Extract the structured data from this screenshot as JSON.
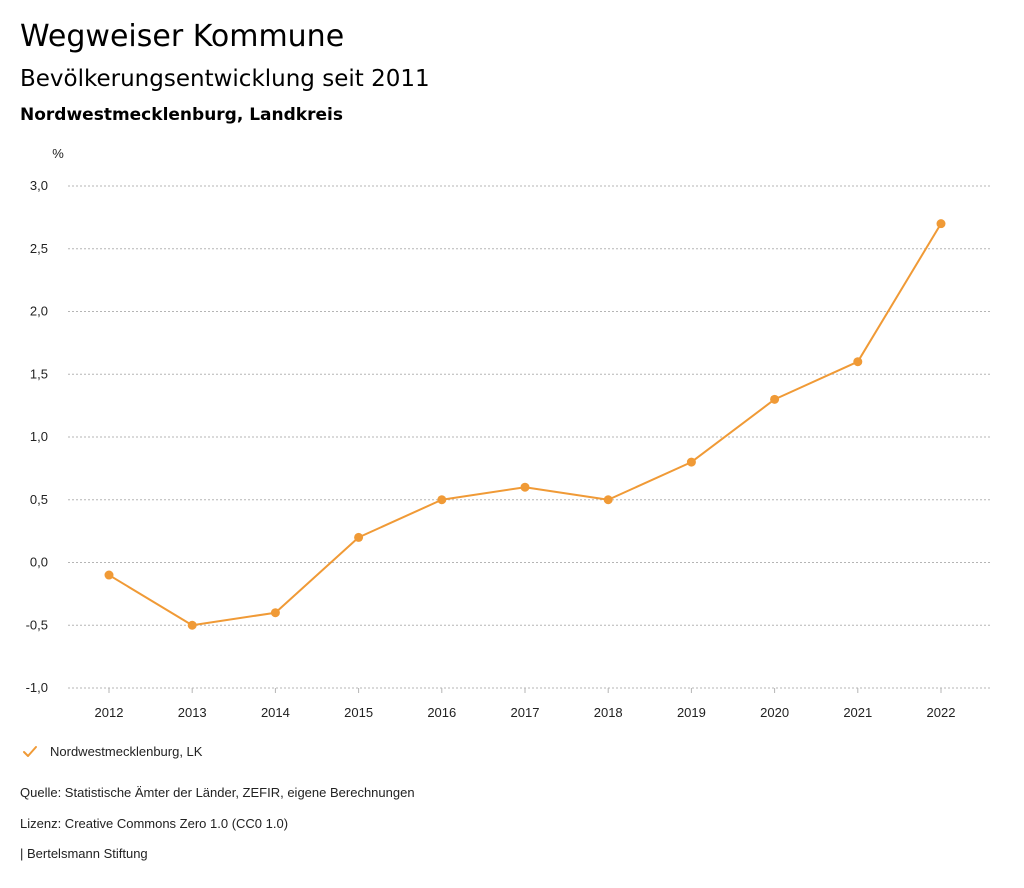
{
  "header": {
    "title": "Wegweiser Kommune",
    "subtitle": "Bevölkerungsentwicklung seit 2011",
    "region": "Nordwestmecklenburg, Landkreis"
  },
  "colors": {
    "series": "#f09a36",
    "grid": "#b5b5b5",
    "text": "#222222"
  },
  "chart_data": {
    "type": "line",
    "title": "Bevölkerungsentwicklung seit 2011",
    "ylabel": "%",
    "xlabel": "",
    "categories": [
      "2012",
      "2013",
      "2014",
      "2015",
      "2016",
      "2017",
      "2018",
      "2019",
      "2020",
      "2021",
      "2022"
    ],
    "series": [
      {
        "name": "Nordwestmecklenburg, LK",
        "values": [
          -0.1,
          -0.5,
          -0.4,
          0.2,
          0.5,
          0.6,
          0.5,
          0.8,
          1.3,
          1.6,
          2.7
        ]
      }
    ],
    "ylim": [
      -1.0,
      3.0
    ],
    "yticks": [
      3.0,
      2.5,
      2.0,
      1.5,
      1.0,
      0.5,
      0.0,
      -0.5,
      -1.0
    ],
    "ytick_labels": [
      "3,0",
      "2,5",
      "2,0",
      "1,5",
      "1,0",
      "0,5",
      "0,0",
      "-0,5",
      "-1,0"
    ],
    "grid": true,
    "legend_position": "bottom-left"
  },
  "legend": {
    "icon": "check-icon",
    "label": "Nordwestmecklenburg, LK"
  },
  "footer": {
    "source": "Quelle: Statistische Ämter der Länder, ZEFIR, eigene Berechnungen",
    "license": "Lizenz: Creative Commons Zero 1.0 (CC0 1.0)",
    "brand": "| Bertelsmann Stiftung"
  }
}
